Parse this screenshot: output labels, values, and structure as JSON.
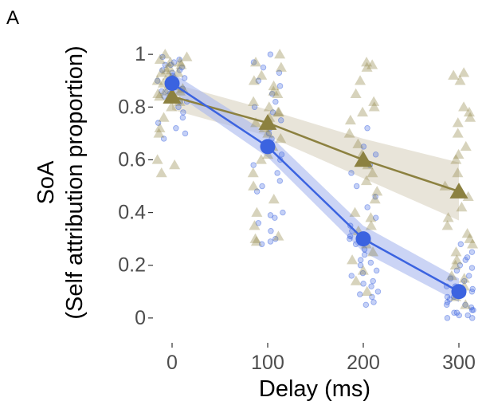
{
  "panel_label": "A",
  "colors": {
    "series_blue": "#3b63e0",
    "series_olive": "#8c8140",
    "band_blue": "#a9b8ef",
    "band_olive": "#d8d2c0",
    "tick_text": "#4d4d4d"
  },
  "chart_data": {
    "type": "line",
    "xlabel": "Delay (ms)",
    "ylabel_lines": [
      "SoA",
      "(Self attribution proportion)"
    ],
    "x": [
      0,
      100,
      200,
      300
    ],
    "x_tick_labels": [
      "0",
      "100",
      "200",
      "300"
    ],
    "y_ticks": [
      0,
      0.2,
      0.4,
      0.6,
      0.8,
      1
    ],
    "y_tick_labels": [
      "0",
      "0.2",
      "0.4",
      "0.6",
      "0.8",
      "1"
    ],
    "xlim": [
      -25,
      320
    ],
    "ylim": [
      -0.07,
      1.07
    ],
    "grid": false,
    "legend": "none",
    "series": [
      {
        "marker": "circle",
        "color": "#3b63e0",
        "means": [
          0.89,
          0.65,
          0.3,
          0.1
        ],
        "ci_lower": [
          0.86,
          0.61,
          0.25,
          0.06
        ],
        "ci_upper": [
          0.93,
          0.7,
          0.35,
          0.15
        ],
        "raw_points": [
          [
            0.99,
            0.98,
            0.97,
            0.96,
            0.96,
            0.95,
            0.94,
            0.93,
            0.92,
            0.91,
            0.9,
            0.9,
            0.89,
            0.88,
            0.87,
            0.86,
            0.85,
            0.84,
            0.82,
            0.8,
            0.78,
            0.76,
            0.74,
            0.72,
            0.7,
            0.68,
            0.82,
            0.86,
            0.91,
            0.94
          ],
          [
            1.0,
            0.97,
            0.95,
            0.93,
            0.9,
            0.88,
            0.85,
            0.82,
            0.8,
            0.78,
            0.75,
            0.72,
            0.7,
            0.68,
            0.65,
            0.62,
            0.6,
            0.58,
            0.55,
            0.52,
            0.5,
            0.48,
            0.4,
            0.39,
            0.38,
            0.33,
            0.3,
            0.29,
            0.28,
            0.36
          ],
          [
            0.72,
            0.65,
            0.62,
            0.58,
            0.55,
            0.5,
            0.46,
            0.42,
            0.38,
            0.35,
            0.33,
            0.31,
            0.3,
            0.28,
            0.26,
            0.24,
            0.22,
            0.2,
            0.18,
            0.16,
            0.14,
            0.12,
            0.1,
            0.08,
            0.06,
            0.05,
            0.09,
            0.13,
            0.17,
            0.21
          ],
          [
            0.28,
            0.25,
            0.22,
            0.2,
            0.18,
            0.16,
            0.14,
            0.12,
            0.11,
            0.1,
            0.09,
            0.08,
            0.07,
            0.06,
            0.05,
            0.04,
            0.03,
            0.02,
            0.01,
            0.0,
            0.0,
            0.01,
            0.02,
            0.05,
            0.08,
            0.12,
            0.15,
            0.19,
            0.23,
            0.03
          ]
        ]
      },
      {
        "marker": "triangle",
        "color": "#8c8140",
        "means": [
          0.84,
          0.74,
          0.6,
          0.48
        ],
        "ci_lower": [
          0.79,
          0.69,
          0.53,
          0.37
        ],
        "ci_upper": [
          0.89,
          0.79,
          0.68,
          0.59
        ],
        "raw_points": [
          [
            1.0,
            0.99,
            0.98,
            0.97,
            0.96,
            0.95,
            0.94,
            0.93,
            0.92,
            0.91,
            0.9,
            0.89,
            0.88,
            0.87,
            0.86,
            0.85,
            0.84,
            0.82,
            0.8,
            0.76,
            0.72,
            0.7,
            0.6,
            0.58,
            0.55,
            0.97,
            0.93,
            0.86
          ],
          [
            1.0,
            0.97,
            0.95,
            0.92,
            0.9,
            0.88,
            0.85,
            0.82,
            0.8,
            0.78,
            0.76,
            0.74,
            0.72,
            0.7,
            0.68,
            0.65,
            0.62,
            0.6,
            0.55,
            0.5,
            0.45,
            0.4,
            0.35,
            0.31,
            0.3,
            0.29,
            0.86,
            0.78
          ],
          [
            0.97,
            0.96,
            0.95,
            0.9,
            0.85,
            0.82,
            0.8,
            0.78,
            0.75,
            0.7,
            0.66,
            0.62,
            0.58,
            0.55,
            0.52,
            0.48,
            0.45,
            0.4,
            0.38,
            0.35,
            0.33,
            0.3,
            0.28,
            0.25,
            0.22,
            0.18,
            0.14,
            0.1
          ],
          [
            0.93,
            0.92,
            0.9,
            0.8,
            0.78,
            0.76,
            0.74,
            0.7,
            0.65,
            0.62,
            0.6,
            0.55,
            0.5,
            0.46,
            0.42,
            0.38,
            0.35,
            0.32,
            0.3,
            0.28,
            0.25,
            0.22,
            0.2,
            0.16,
            0.15,
            0.12,
            0.08,
            0.05
          ]
        ]
      }
    ]
  }
}
